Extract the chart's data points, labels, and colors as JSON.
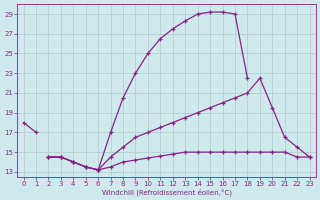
{
  "xlabel": "Windchill (Refroidissement éolien,°C)",
  "bg_color": "#ceeaed",
  "grid_color": "#b0c8cc",
  "line_color": "#882288",
  "x_ticks": [
    0,
    1,
    2,
    3,
    4,
    5,
    6,
    7,
    8,
    9,
    10,
    11,
    12,
    13,
    14,
    15,
    16,
    17,
    18,
    19,
    20,
    21,
    22,
    23
  ],
  "y_ticks": [
    13,
    15,
    17,
    19,
    21,
    23,
    25,
    27,
    29
  ],
  "xlim": [
    -0.5,
    23.5
  ],
  "ylim": [
    12.5,
    30.0
  ],
  "series": [
    {
      "x": [
        2,
        3,
        4,
        5,
        6,
        7,
        8,
        9,
        10,
        11,
        12,
        13,
        14,
        15,
        16,
        17,
        18
      ],
      "y": [
        14.5,
        14.5,
        14.0,
        13.5,
        13.2,
        17.0,
        20.5,
        23.0,
        25.0,
        26.5,
        27.5,
        28.3,
        29.0,
        29.2,
        29.2,
        29.0,
        22.5
      ]
    },
    {
      "x": [
        2,
        3,
        4,
        5,
        6,
        7,
        8,
        9,
        10,
        11,
        12,
        13,
        14,
        15,
        16,
        17,
        18,
        19,
        20,
        21,
        22,
        23
      ],
      "y": [
        14.5,
        14.5,
        14.0,
        13.5,
        13.2,
        14.5,
        15.5,
        16.5,
        17.0,
        17.5,
        18.0,
        18.5,
        19.0,
        19.5,
        20.0,
        20.5,
        21.0,
        22.5,
        19.5,
        16.5,
        15.5,
        14.5
      ]
    },
    {
      "x": [
        2,
        3,
        4,
        5,
        6,
        7,
        8,
        9,
        10,
        11,
        12,
        13,
        14,
        15,
        16,
        17,
        18,
        19,
        20,
        21,
        22,
        23
      ],
      "y": [
        14.5,
        14.5,
        14.0,
        13.5,
        13.2,
        13.5,
        14.0,
        14.2,
        14.4,
        14.6,
        14.8,
        15.0,
        15.0,
        15.0,
        15.0,
        15.0,
        15.0,
        15.0,
        15.0,
        15.0,
        14.5,
        14.5
      ]
    },
    {
      "x": [
        0,
        1
      ],
      "y": [
        18.0,
        17.0
      ]
    }
  ]
}
